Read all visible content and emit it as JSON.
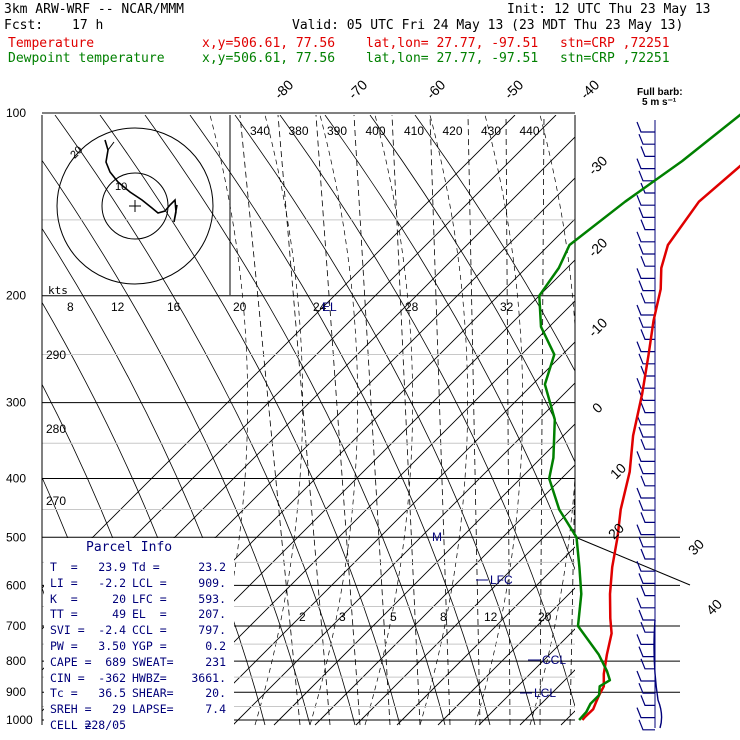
{
  "header": {
    "model": "3km ARW-WRF -- NCAR/MMM",
    "init": "Init: 12 UTC Thu 23 May 13",
    "fcst_label": "Fcst:",
    "fcst_value": "17 h",
    "valid": "Valid: 05 UTC Fri 24 May 13 (23 MDT Thu 23 May 13)",
    "temp_line": {
      "label": "Temperature",
      "xy": "x,y=506.61, 77.56",
      "latlon": "lat,lon= 27.77, -97.51",
      "stn": "stn=CRP ,72251"
    },
    "dew_line": {
      "label": "Dewpoint temperature",
      "xy": "x,y=506.61, 77.56",
      "latlon": "lat,lon= 27.77, -97.51",
      "stn": "stn=CRP ,72251"
    }
  },
  "barb_legend": {
    "line1": "Full barb:",
    "line2": "5 m s⁻¹"
  },
  "hodo_label": "kts",
  "parcel_info": {
    "title": "Parcel Info",
    "rows": [
      [
        "T  =",
        "23.9",
        "Td =",
        "23.2"
      ],
      [
        "LI =",
        "-2.2",
        "LCL =",
        "909."
      ],
      [
        "K  =",
        "20",
        "LFC =",
        "593."
      ],
      [
        "TT =",
        "49",
        "EL  =",
        "207."
      ],
      [
        "SVI =",
        "-2.4",
        "CCL =",
        "797."
      ],
      [
        "PW =",
        "3.50",
        "YGP =",
        "0.2"
      ],
      [
        "CAPE =",
        "689",
        "SWEAT=",
        "231"
      ],
      [
        "CIN =",
        "-362",
        "HWBZ=",
        "3661."
      ],
      [
        "Tc =",
        "36.5",
        "SHEAR=",
        "20."
      ],
      [
        "SREH =",
        "29",
        "LAPSE=",
        "7.4"
      ],
      [
        "CELL =",
        "228/05",
        "",
        ""
      ]
    ]
  },
  "level_labels": {
    "el": "EL",
    "lfc": "LFC",
    "ccl": "CCL",
    "lcl": "LCL",
    "m": "M"
  },
  "colors": {
    "temperature": "#e00000",
    "dewpoint": "#008000",
    "barbs": "#00007a"
  },
  "chart_data": {
    "type": "line",
    "pressure_ticks": [
      "100",
      "200",
      "300",
      "400",
      "500",
      "600",
      "700",
      "800",
      "900",
      "1000"
    ],
    "isotherm_labels": [
      "-80",
      "-70",
      "-60",
      "-50",
      "-40",
      "-30",
      "-20",
      "-10",
      "0",
      "10",
      "20",
      "30",
      "40"
    ],
    "theta_labels": [
      "340",
      "380",
      "390",
      "400",
      "410",
      "420",
      "430",
      "440"
    ],
    "mixing_ratio_upper": [
      "8",
      "12",
      "16",
      "20",
      "24",
      "28",
      "32"
    ],
    "mixing_ratio_lower": [
      "2",
      "3",
      "5",
      "8",
      "12",
      "20"
    ],
    "theta_e_labels": [
      "290",
      "280",
      "270"
    ],
    "series": [
      {
        "name": "Temperature",
        "pressure": [
          100,
          115,
          140,
          165,
          180,
          195,
          220,
          250,
          290,
          340,
          390,
          450,
          500,
          560,
          620,
          680,
          720,
          780,
          840,
          880,
          910,
          935,
          960,
          990,
          1000
        ],
        "temperature": [
          -70,
          -72,
          -74,
          -71,
          -67,
          -62,
          -56,
          -49,
          -41,
          -33,
          -25,
          -18,
          -12,
          -6,
          0,
          6,
          10,
          14,
          18,
          21,
          22,
          23,
          24,
          23.9,
          24
        ]
      },
      {
        "name": "Dewpoint temperature",
        "pressure": [
          100,
          120,
          140,
          165,
          180,
          200,
          225,
          250,
          280,
          320,
          370,
          400,
          450,
          500,
          560,
          620,
          700,
          780,
          830,
          860,
          880,
          910,
          940,
          970,
          1000
        ],
        "temperature": [
          -85,
          -88,
          -92,
          -95,
          -92,
          -90,
          -82,
          -72,
          -67,
          -56,
          -47,
          -43,
          -33,
          -22,
          -14,
          -7,
          0,
          12,
          18,
          21,
          20,
          22,
          22,
          23,
          23.2
        ]
      }
    ]
  }
}
